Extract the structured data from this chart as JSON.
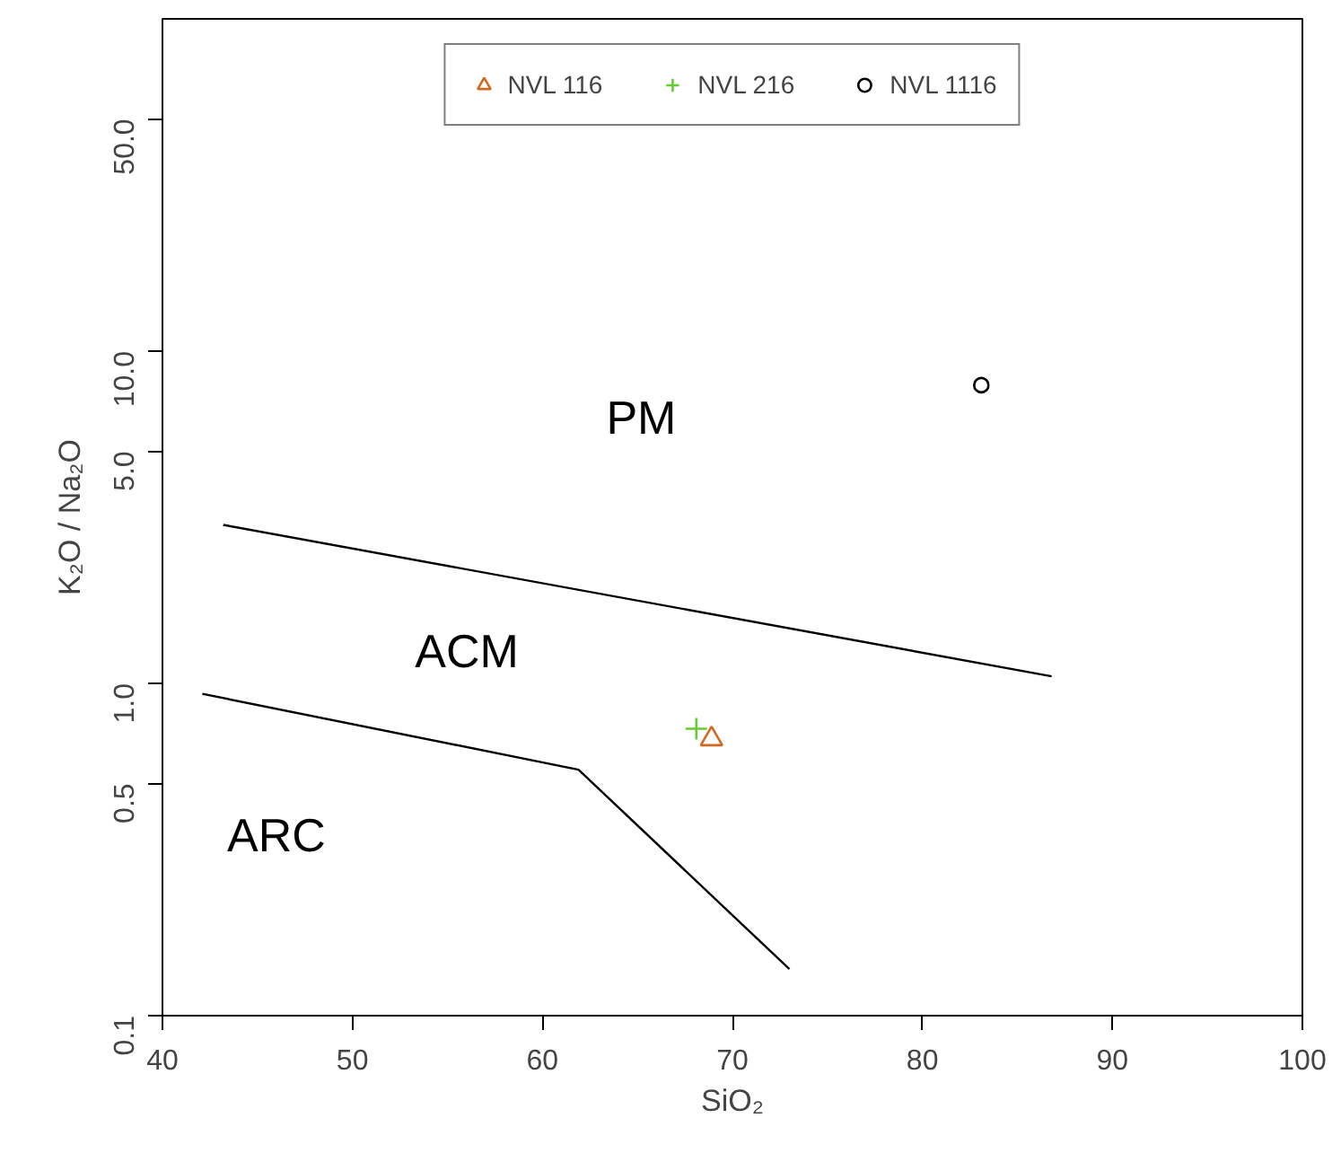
{
  "chart_data": {
    "type": "scatter",
    "xlabel": "SiO₂",
    "ylabel": "K₂O / Na₂O",
    "xlim": [
      40,
      100
    ],
    "ylim": [
      0.1,
      100
    ],
    "log": "y",
    "xticks": [
      40,
      50,
      60,
      70,
      80,
      90,
      100
    ],
    "yticks": [
      {
        "value": 0.1,
        "label": "0.1"
      },
      {
        "value": 0.5,
        "label": "0.5"
      },
      {
        "value": 1,
        "label": "1.0"
      },
      {
        "value": 5,
        "label": "5.0"
      },
      {
        "value": 10,
        "label": "10.0"
      },
      {
        "value": 50,
        "label": "50.0"
      }
    ],
    "grid": false,
    "legend": "top",
    "series": [
      {
        "name": "NVL 116",
        "color": "#d2691e",
        "marker": "triangle",
        "x": [
          68.9
        ],
        "values": [
          0.68
        ]
      },
      {
        "name": "NVL 216",
        "color": "#66cc33",
        "marker": "cross",
        "x": [
          68.1
        ],
        "values": [
          0.73
        ]
      },
      {
        "name": "NVL 1116",
        "color": "#000000",
        "marker": "circle",
        "x": [
          83.1
        ],
        "values": [
          7.9
        ]
      },
      {
        "type": "line",
        "color": "#000000",
        "marker": "none",
        "x": [
          43.2,
          86.8
        ],
        "values": [
          3.0,
          1.05
        ]
      },
      {
        "type": "line",
        "color": "#000000",
        "marker": "none",
        "x": [
          42.1,
          61.9,
          73.0
        ],
        "values": [
          0.93,
          0.55,
          0.138
        ]
      }
    ],
    "annotations": [
      "PM",
      "ACM",
      "ARC"
    ]
  }
}
